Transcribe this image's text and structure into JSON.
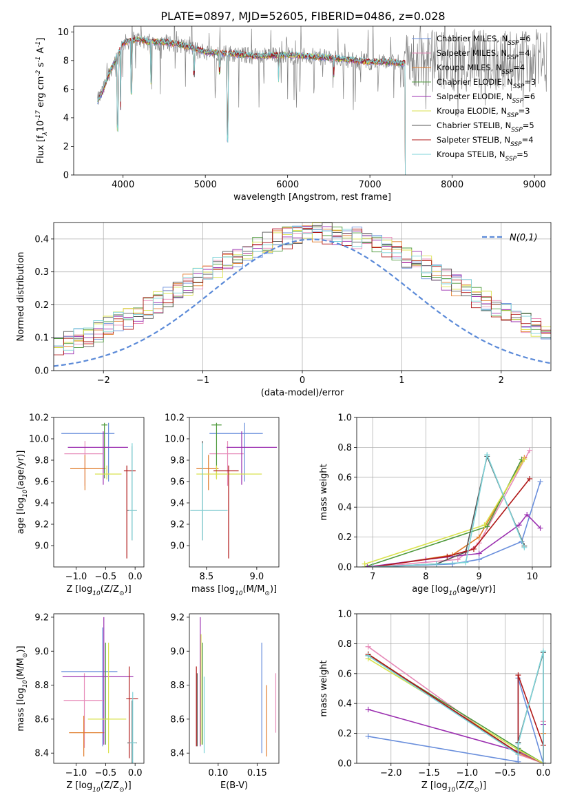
{
  "page_title": "PLATE=0897, MJD=52605, FIBERID=0486, z=0.028",
  "models": [
    {
      "label": "Chabrier MILES, N$_{SSP}$=6",
      "imf": "Chabrier",
      "lib": "MILES",
      "nssp": 6,
      "color": "#6a8fdc"
    },
    {
      "label": "Salpeter MILES, N$_{SSP}$=4",
      "imf": "Salpeter",
      "lib": "MILES",
      "nssp": 4,
      "color": "#e68ab8"
    },
    {
      "label": "Kroupa MILES, N$_{SSP}$=4",
      "imf": "Kroupa",
      "lib": "MILES",
      "nssp": 4,
      "color": "#e07b2a"
    },
    {
      "label": "Chabrier ELODIE, N$_{SSP}$=3",
      "imf": "Chabrier",
      "lib": "ELODIE",
      "nssp": 3,
      "color": "#4f9a3c"
    },
    {
      "label": "Salpeter ELODIE, N$_{SSP}$=6",
      "imf": "Salpeter",
      "lib": "ELODIE",
      "nssp": 6,
      "color": "#9b2fb0"
    },
    {
      "label": "Kroupa ELODIE, N$_{SSP}$=3",
      "imf": "Kroupa",
      "lib": "ELODIE",
      "nssp": 3,
      "color": "#d9e24c"
    },
    {
      "label": "Chabrier STELIB, N$_{SSP}$=5",
      "imf": "Chabrier",
      "lib": "STELIB",
      "nssp": 5,
      "color": "#555555"
    },
    {
      "label": "Salpeter STELIB, N$_{SSP}$=4",
      "imf": "Salpeter",
      "lib": "STELIB",
      "nssp": 4,
      "color": "#b01818"
    },
    {
      "label": "Kroupa STELIB, N$_{SSP}$=5",
      "imf": "Kroupa",
      "lib": "STELIB",
      "nssp": 5,
      "color": "#7dd3d8"
    }
  ],
  "chart_data": [
    {
      "id": "spectrum",
      "type": "line",
      "xlabel": "wavelength [Angstrom, rest frame]",
      "ylabel": "Flux [f$_\\lambda$10$^{-17}$ erg cm$^{-2}$ s$^{-1}$ A$^{-1}$]",
      "xlim": [
        3400,
        9200
      ],
      "ylim": [
        0,
        10.4
      ],
      "xticks": [
        4000,
        5000,
        6000,
        7000,
        8000,
        9000
      ],
      "yticks": [
        0,
        2,
        4,
        6,
        8,
        10
      ],
      "legend": "top-right",
      "observed_color": "#808080",
      "model_continuum": {
        "x": [
          3690,
          3750,
          3800,
          3850,
          3900,
          3950,
          4000,
          4100,
          4200,
          4300,
          4500,
          4700,
          5000,
          5300,
          5600,
          6000,
          6500,
          7000,
          7200,
          7400
        ],
        "y": [
          5.2,
          5.8,
          6.6,
          7.4,
          7.9,
          8.6,
          9.2,
          9.4,
          9.5,
          9.3,
          9.3,
          9.1,
          8.6,
          8.5,
          8.3,
          8.4,
          8.2,
          7.9,
          7.9,
          7.8
        ]
      },
      "absorption_lines": [
        {
          "x": 3934,
          "y": 3.0
        },
        {
          "x": 3969,
          "y": 4.5
        },
        {
          "x": 4102,
          "y": 5.6
        },
        {
          "x": 4340,
          "y": 6.3
        },
        {
          "x": 4861,
          "y": 6.8
        },
        {
          "x": 5175,
          "y": 7.0
        },
        {
          "x": 5270,
          "y": 2.2
        },
        {
          "x": 5890,
          "y": 6.3
        },
        {
          "x": 6563,
          "y": 6.8
        }
      ]
    },
    {
      "id": "residuals",
      "type": "histogram",
      "xlabel": "(data-model)/error",
      "ylabel": "Normed distribution",
      "xlim": [
        -2.5,
        2.5
      ],
      "ylim": [
        0,
        0.45
      ],
      "xticks": [
        -2,
        -1,
        0,
        1,
        2
      ],
      "yticks": [
        0.0,
        0.1,
        0.2,
        0.3,
        0.4
      ],
      "grid": true,
      "reference_curve": {
        "label": "$\\mathcal{N}(0,1)$",
        "color": "#5b8ad8"
      },
      "legend": "top-right"
    },
    {
      "id": "age_vs_Z",
      "type": "errorbar",
      "xlabel": "Z [log$_{10}$(Z/Z$_\\odot$)]",
      "ylabel": "age  [log$_{10}$(age/yr)]",
      "xlim": [
        -1.38,
        0.15
      ],
      "ylim": [
        8.8,
        10.2
      ],
      "xticks": [
        -1.0,
        -0.5,
        0.0
      ],
      "yticks": [
        9.0,
        9.2,
        9.4,
        9.6,
        9.8,
        10.0,
        10.2
      ],
      "points": [
        {
          "model": 0,
          "x": -0.45,
          "xerr": [
            0.8,
            0.1
          ],
          "y": 10.05,
          "yerr": [
            0.45,
            0.1
          ]
        },
        {
          "model": 1,
          "x": -0.85,
          "xerr": [
            0.35,
            0.3
          ],
          "y": 9.86,
          "yerr": [
            0.3,
            0.12
          ]
        },
        {
          "model": 2,
          "x": -0.85,
          "xerr": [
            0.25,
            0.35
          ],
          "y": 9.72,
          "yerr": [
            0.2,
            0.13
          ]
        },
        {
          "model": 3,
          "x": -0.52,
          "xerr": [
            0.05,
            0.05
          ],
          "y": 10.13,
          "yerr": [
            0.5,
            0.02
          ]
        },
        {
          "model": 4,
          "x": -0.54,
          "xerr": [
            0.6,
            0.42
          ],
          "y": 9.92,
          "yerr": [
            0.35,
            0.15
          ]
        },
        {
          "model": 5,
          "x": -0.48,
          "xerr": [
            0.2,
            0.25
          ],
          "y": 9.67,
          "yerr": [
            0.05,
            0.08
          ]
        },
        {
          "model": 6,
          "x": -0.05,
          "xerr": [
            0.08,
            0.08
          ],
          "y": 9.33,
          "yerr": [
            0.28,
            0.6
          ]
        },
        {
          "model": 7,
          "x": -0.14,
          "xerr": [
            0.05,
            0.15
          ],
          "y": 9.7,
          "yerr": [
            0.82,
            0.05
          ]
        },
        {
          "model": 8,
          "x": -0.05,
          "xerr": [
            0.06,
            0.08
          ],
          "y": 9.33,
          "yerr": [
            0.28,
            0.63
          ]
        }
      ]
    },
    {
      "id": "age_vs_mass",
      "type": "errorbar",
      "xlabel": "mass [log$_{10}$(M/M$_\\odot$)]",
      "ylabel": "",
      "xlim": [
        8.33,
        9.22
      ],
      "ylim": [
        8.8,
        10.2
      ],
      "xticks": [
        8.5,
        9.0
      ],
      "yticks": [
        9.0,
        9.2,
        9.4,
        9.6,
        9.8,
        10.0,
        10.2
      ],
      "points": [
        {
          "model": 0,
          "x": 8.88,
          "xerr": [
            0.35,
            0.18
          ],
          "y": 10.05,
          "yerr": [
            0.45,
            0.1
          ]
        },
        {
          "model": 1,
          "x": 8.71,
          "xerr": [
            0.18,
            0.16
          ],
          "y": 9.86,
          "yerr": [
            0.3,
            0.12
          ]
        },
        {
          "model": 2,
          "x": 8.52,
          "xerr": [
            0.12,
            0.1
          ],
          "y": 9.72,
          "yerr": [
            0.2,
            0.13
          ]
        },
        {
          "model": 3,
          "x": 8.6,
          "xerr": [
            0.05,
            0.05
          ],
          "y": 10.13,
          "yerr": [
            0.5,
            0.02
          ]
        },
        {
          "model": 4,
          "x": 8.85,
          "xerr": [
            0.15,
            0.35
          ],
          "y": 9.92,
          "yerr": [
            0.35,
            0.15
          ]
        },
        {
          "model": 5,
          "x": 8.6,
          "xerr": [
            0.2,
            0.45
          ],
          "y": 9.67,
          "yerr": [
            0.05,
            0.08
          ]
        },
        {
          "model": 6,
          "x": 8.46,
          "xerr": [
            0.12,
            0.25
          ],
          "y": 9.33,
          "yerr": [
            0.28,
            0.65
          ]
        },
        {
          "model": 7,
          "x": 8.72,
          "xerr": [
            0.15,
            0.1
          ],
          "y": 9.7,
          "yerr": [
            0.82,
            0.05
          ]
        },
        {
          "model": 8,
          "x": 8.46,
          "xerr": [
            0.12,
            0.25
          ],
          "y": 9.33,
          "yerr": [
            0.28,
            0.63
          ]
        }
      ]
    },
    {
      "id": "mass_weight_vs_age",
      "type": "line",
      "xlabel": "age  [log$_{10}$(age/yr)]",
      "ylabel": "mass weight",
      "xlim": [
        6.7,
        10.35
      ],
      "ylim": [
        0,
        1.0
      ],
      "xticks": [
        7,
        8,
        9,
        10
      ],
      "yticks": [
        0.0,
        0.2,
        0.4,
        0.6,
        0.8,
        1.0
      ],
      "grid": true,
      "series": [
        {
          "model": 0,
          "x": [
            7.0,
            8.5,
            9.0,
            9.8,
            10.15
          ],
          "y": [
            0.0,
            0.02,
            0.05,
            0.17,
            0.57
          ]
        },
        {
          "model": 1,
          "x": [
            7.0,
            8.6,
            9.0,
            9.95
          ],
          "y": [
            0.0,
            0.05,
            0.16,
            0.78
          ]
        },
        {
          "model": 2,
          "x": [
            7.0,
            8.5,
            9.0,
            9.85
          ],
          "y": [
            0.0,
            0.08,
            0.2,
            0.73
          ]
        },
        {
          "model": 3,
          "x": [
            6.85,
            9.15,
            9.8
          ],
          "y": [
            0.0,
            0.27,
            0.72
          ]
        },
        {
          "model": 4,
          "x": [
            6.9,
            8.0,
            9.0,
            9.75,
            9.9,
            10.15
          ],
          "y": [
            0.0,
            0.05,
            0.09,
            0.28,
            0.35,
            0.26
          ]
        },
        {
          "model": 5,
          "x": [
            6.85,
            9.1,
            9.85
          ],
          "y": [
            0.02,
            0.28,
            0.72
          ]
        },
        {
          "model": 6,
          "x": [
            7.0,
            8.2,
            8.75,
            9.15,
            9.85
          ],
          "y": [
            0.0,
            0.02,
            0.1,
            0.74,
            0.14
          ]
        },
        {
          "model": 7,
          "x": [
            7.0,
            8.4,
            8.9,
            9.95
          ],
          "y": [
            0.0,
            0.07,
            0.12,
            0.59
          ]
        },
        {
          "model": 8,
          "x": [
            7.0,
            8.2,
            8.75,
            9.15,
            9.85
          ],
          "y": [
            0.0,
            0.02,
            0.03,
            0.75,
            0.13
          ]
        }
      ]
    },
    {
      "id": "mass_vs_Z",
      "type": "errorbar",
      "xlabel": "Z [log$_{10}$(Z/Z$_\\odot$)]",
      "ylabel": "mass [log$_{10}$(M/M$_\\odot$)]",
      "xlim": [
        -1.38,
        0.15
      ],
      "ylim": [
        8.34,
        9.22
      ],
      "xticks": [
        -1.0,
        -0.5,
        0.0
      ],
      "yticks": [
        8.4,
        8.6,
        8.8,
        9.0,
        9.2
      ],
      "points": [
        {
          "model": 0,
          "x": -0.55,
          "xerr": [
            0.7,
            0.25
          ],
          "y": 8.88,
          "yerr": [
            0.44,
            0.26
          ]
        },
        {
          "model": 1,
          "x": -0.86,
          "xerr": [
            0.35,
            0.33
          ],
          "y": 8.71,
          "yerr": [
            0.28,
            0.16
          ]
        },
        {
          "model": 2,
          "x": -0.87,
          "xerr": [
            0.25,
            0.35
          ],
          "y": 8.52,
          "yerr": [
            0.14,
            0.1
          ]
        },
        {
          "model": 3,
          "x": -0.5,
          "xerr": [
            0.05,
            0.05
          ],
          "y": 8.6,
          "yerr": [
            0.15,
            0.45
          ]
        },
        {
          "model": 4,
          "x": -0.53,
          "xerr": [
            0.7,
            0.5
          ],
          "y": 8.85,
          "yerr": [
            0.4,
            0.35
          ]
        },
        {
          "model": 5,
          "x": -0.45,
          "xerr": [
            0.35,
            0.3
          ],
          "y": 8.6,
          "yerr": [
            0.2,
            0.45
          ]
        },
        {
          "model": 6,
          "x": -0.05,
          "xerr": [
            0.08,
            0.08
          ],
          "y": 8.46,
          "yerr": [
            0.12,
            0.25
          ]
        },
        {
          "model": 7,
          "x": -0.1,
          "xerr": [
            0.05,
            0.15
          ],
          "y": 8.72,
          "yerr": [
            0.35,
            0.19
          ]
        },
        {
          "model": 8,
          "x": -0.04,
          "xerr": [
            0.06,
            0.06
          ],
          "y": 8.46,
          "yerr": [
            0.12,
            0.3
          ]
        }
      ]
    },
    {
      "id": "mass_vs_EBV",
      "type": "errorbar",
      "xlabel": "E(B-V)",
      "ylabel": "",
      "xlim": [
        0.063,
        0.178
      ],
      "ylim": [
        8.34,
        9.22
      ],
      "xticks": [
        0.1,
        0.15
      ],
      "yticks": [
        8.4,
        8.6,
        8.8,
        9.0,
        9.2
      ],
      "points": [
        {
          "model": 0,
          "x": 0.156,
          "xerr": [
            0.0,
            0.0
          ],
          "y": 8.72,
          "yerr": [
            0.32,
            0.33
          ]
        },
        {
          "model": 1,
          "x": 0.174,
          "xerr": [
            0.0,
            0.0
          ],
          "y": 8.69,
          "yerr": [
            0.17,
            0.18
          ]
        },
        {
          "model": 2,
          "x": 0.162,
          "xerr": [
            0.0,
            0.0
          ],
          "y": 8.6,
          "yerr": [
            0.22,
            0.2
          ]
        },
        {
          "model": 3,
          "x": 0.08,
          "xerr": [
            0.0,
            0.0
          ],
          "y": 8.75,
          "yerr": [
            0.3,
            0.3
          ]
        },
        {
          "model": 4,
          "x": 0.077,
          "xerr": [
            0.0,
            0.0
          ],
          "y": 8.82,
          "yerr": [
            0.38,
            0.38
          ]
        },
        {
          "model": 5,
          "x": 0.078,
          "xerr": [
            0.0,
            0.0
          ],
          "y": 8.75,
          "yerr": [
            0.3,
            0.35
          ]
        },
        {
          "model": 6,
          "x": 0.073,
          "xerr": [
            0.0,
            0.0
          ],
          "y": 8.62,
          "yerr": [
            0.18,
            0.25
          ]
        },
        {
          "model": 7,
          "x": 0.072,
          "xerr": [
            0.0,
            0.0
          ],
          "y": 8.67,
          "yerr": [
            0.23,
            0.24
          ]
        },
        {
          "model": 8,
          "x": 0.082,
          "xerr": [
            0.0,
            0.0
          ],
          "y": 8.6,
          "yerr": [
            0.2,
            0.25
          ]
        }
      ]
    },
    {
      "id": "mass_weight_vs_Z",
      "type": "line",
      "xlabel": "Z [log$_{10}$(Z/Z$_\\odot$)]",
      "ylabel": "mass weight",
      "xlim": [
        -2.45,
        0.1
      ],
      "ylim": [
        0,
        1.0
      ],
      "xticks": [
        -2.0,
        -1.5,
        -1.0,
        -0.5,
        0.0
      ],
      "yticks": [
        0.0,
        0.2,
        0.4,
        0.6,
        0.8,
        1.0
      ],
      "grid": true,
      "series": [
        {
          "model": 0,
          "x": [
            -2.3,
            -0.33,
            -0.33,
            0.0
          ],
          "y": [
            0.18,
            0.01,
            0.57,
            0.0
          ]
        },
        {
          "model": 1,
          "x": [
            -2.3,
            -0.33,
            0.0,
            0.0
          ],
          "y": [
            0.78,
            0.06,
            0.0,
            0.28
          ]
        },
        {
          "model": 2,
          "x": [
            -2.3,
            -0.33,
            0.0,
            0.0
          ],
          "y": [
            0.73,
            0.07,
            0.0,
            0.2
          ]
        },
        {
          "model": 3,
          "x": [
            -2.3,
            -0.33,
            0.0
          ],
          "y": [
            0.72,
            0.1,
            0.0
          ]
        },
        {
          "model": 4,
          "x": [
            -2.3,
            -0.33,
            0.0,
            0.0
          ],
          "y": [
            0.36,
            0.08,
            0.0,
            0.26
          ]
        },
        {
          "model": 5,
          "x": [
            -2.3,
            -0.33,
            0.0
          ],
          "y": [
            0.7,
            0.09,
            0.0
          ]
        },
        {
          "model": 6,
          "x": [
            -2.3,
            -0.33,
            -0.33,
            0.0,
            0.0
          ],
          "y": [
            0.72,
            0.07,
            0.14,
            0.74,
            0.0
          ]
        },
        {
          "model": 7,
          "x": [
            -2.3,
            -0.33,
            -0.33,
            0.0,
            0.0
          ],
          "y": [
            0.73,
            0.07,
            0.59,
            0.12,
            0.0
          ]
        },
        {
          "model": 8,
          "x": [
            -2.3,
            -0.33,
            -0.33,
            0.0,
            0.0
          ],
          "y": [
            0.72,
            0.06,
            0.13,
            0.75,
            0.0
          ]
        }
      ]
    }
  ]
}
